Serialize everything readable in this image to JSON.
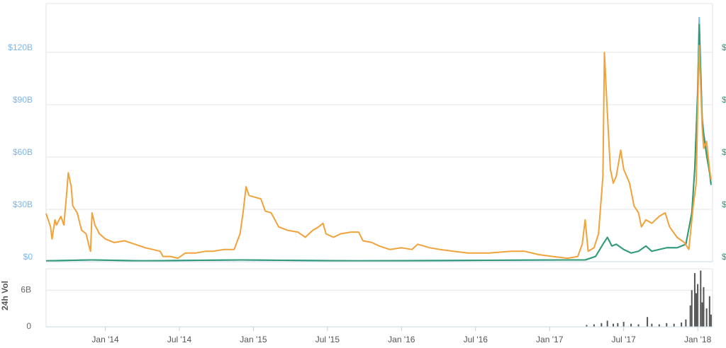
{
  "chart_data": [
    {
      "type": "line",
      "xlim": [
        2013.6,
        2018.1
      ],
      "ylim": [
        0,
        148
      ],
      "yticks": [
        {
          "value": 0,
          "label": "$0"
        },
        {
          "value": 30,
          "label": "$30B"
        },
        {
          "value": 60,
          "label": "$60B"
        },
        {
          "value": 90,
          "label": "$90B"
        },
        {
          "value": 120,
          "label": "$120B"
        }
      ],
      "y2_labels": [
        "$",
        "$",
        "$",
        "$",
        "$"
      ],
      "grid": true,
      "series": [
        {
          "color": "#7cb5ec",
          "x": [
            2013.6,
            2013.91,
            2014.25,
            2014.92,
            2015.68,
            2017.12,
            2017.24,
            2017.31,
            2017.36,
            2017.39,
            2017.42,
            2017.45,
            2017.5,
            2017.55,
            2017.6,
            2017.65,
            2017.69,
            2017.74,
            2017.79,
            2017.86,
            2017.92,
            2017.96,
            2017.98,
            2018.0,
            2018.01,
            2018.03,
            2018.04,
            2018.06,
            2018.08,
            2018.09
          ],
          "values": [
            0.5,
            1,
            0.5,
            1,
            0.5,
            1,
            1,
            3,
            10,
            14,
            9,
            10,
            7,
            5,
            6,
            9,
            6,
            7,
            8,
            8,
            10,
            28,
            53,
            100,
            140,
            83,
            74,
            62,
            52,
            45
          ]
        },
        {
          "color": "#2f9a74",
          "x": [
            2013.6,
            2013.91,
            2014.25,
            2014.92,
            2015.68,
            2017.12,
            2017.24,
            2017.31,
            2017.36,
            2017.39,
            2017.42,
            2017.45,
            2017.5,
            2017.55,
            2017.6,
            2017.65,
            2017.69,
            2017.74,
            2017.79,
            2017.86,
            2017.92,
            2017.96,
            2017.98,
            2018.0,
            2018.01,
            2018.03,
            2018.04,
            2018.06,
            2018.08,
            2018.09
          ],
          "values": [
            0.5,
            1,
            0.5,
            1,
            0.5,
            1,
            1,
            3,
            10,
            14,
            9,
            10,
            7,
            5,
            6,
            9,
            6,
            7,
            8,
            8,
            10,
            28,
            53,
            97,
            136,
            81,
            73,
            61,
            51,
            44
          ]
        },
        {
          "color": "#f0a23b",
          "x": [
            2013.6,
            2013.63,
            2013.64,
            2013.66,
            2013.67,
            2013.7,
            2013.72,
            2013.74,
            2013.75,
            2013.77,
            2013.78,
            2013.81,
            2013.84,
            2013.87,
            2013.89,
            2013.9,
            2013.91,
            2013.93,
            2013.96,
            2014.0,
            2014.06,
            2014.13,
            2014.2,
            2014.27,
            2014.32,
            2014.37,
            2014.39,
            2014.44,
            2014.49,
            2014.54,
            2014.61,
            2014.68,
            2014.73,
            2014.8,
            2014.87,
            2014.91,
            2014.93,
            2014.95,
            2014.97,
            2015.01,
            2015.05,
            2015.08,
            2015.12,
            2015.17,
            2015.23,
            2015.3,
            2015.35,
            2015.4,
            2015.44,
            2015.47,
            2015.49,
            2015.54,
            2015.59,
            2015.66,
            2015.71,
            2015.74,
            2015.8,
            2015.85,
            2015.92,
            2016.0,
            2016.07,
            2016.11,
            2016.19,
            2016.26,
            2016.35,
            2016.45,
            2016.59,
            2016.74,
            2016.83,
            2016.93,
            2017.02,
            2017.12,
            2017.19,
            2017.22,
            2017.24,
            2017.26,
            2017.3,
            2017.33,
            2017.36,
            2017.37,
            2017.39,
            2017.41,
            2017.43,
            2017.45,
            2017.48,
            2017.5,
            2017.54,
            2017.57,
            2017.6,
            2017.62,
            2017.65,
            2017.69,
            2017.74,
            2017.78,
            2017.81,
            2017.86,
            2017.91,
            2017.94,
            2017.97,
            2017.99,
            2018.0,
            2018.01,
            2018.03,
            2018.04,
            2018.06,
            2018.08,
            2018.09
          ],
          "values": [
            27.6,
            20,
            13,
            24,
            21,
            26,
            21,
            40,
            51,
            43,
            32,
            28,
            18,
            16,
            9,
            6,
            28,
            21,
            16,
            13,
            11,
            12,
            10,
            8,
            7,
            6,
            3,
            3,
            2,
            5,
            5,
            6,
            6,
            7,
            7,
            16,
            28,
            43,
            38,
            37,
            36,
            29,
            28,
            20,
            18,
            17,
            14,
            18,
            20,
            22,
            16,
            14,
            16,
            17,
            17,
            12,
            11,
            9,
            7,
            8,
            7,
            10,
            8,
            7,
            6,
            5,
            5,
            6,
            6,
            4,
            3,
            2,
            3,
            10,
            24,
            6,
            8,
            16,
            49,
            120,
            85,
            53,
            45,
            49,
            64,
            53,
            45,
            32,
            28,
            20,
            24,
            22,
            26,
            28,
            20,
            14,
            11,
            7,
            32,
            45,
            89,
            124,
            77,
            65,
            69,
            53,
            47
          ]
        }
      ]
    },
    {
      "type": "bar",
      "ylabel": "24h Vol",
      "color": "#555555",
      "xlim": [
        2013.6,
        2018.1
      ],
      "ylim": [
        0,
        9.5
      ],
      "yticks": [
        0,
        {
          "value": 6,
          "label": "6B"
        }
      ],
      "xticks": [
        {
          "value": 2014,
          "label": "Jan '14"
        },
        {
          "value": 2014.5,
          "label": "Jul '14"
        },
        {
          "value": 2015,
          "label": "Jan '15"
        },
        {
          "value": 2015.5,
          "label": "Jul '15"
        },
        {
          "value": 2016,
          "label": "Jan '16"
        },
        {
          "value": 2016.5,
          "label": "Jul '16"
        },
        {
          "value": 2017,
          "label": "Jan '17"
        },
        {
          "value": 2017.5,
          "label": "Jul '17"
        },
        {
          "value": 2018,
          "label": "Jan '18"
        }
      ],
      "x": [
        2017.25,
        2017.3,
        2017.35,
        2017.39,
        2017.43,
        2017.46,
        2017.5,
        2017.55,
        2017.6,
        2017.66,
        2017.69,
        2017.74,
        2017.79,
        2017.84,
        2017.89,
        2017.92,
        2017.95,
        2017.96,
        2017.98,
        2017.99,
        2018.0,
        2018.02,
        2018.03,
        2018.04,
        2018.06,
        2018.08,
        2018.09
      ],
      "values": [
        0.3,
        0.4,
        0.6,
        1.0,
        0.5,
        0.6,
        0.8,
        0.5,
        0.4,
        1.6,
        0.5,
        0.4,
        0.6,
        0.5,
        0.7,
        1.2,
        3.5,
        6.0,
        8.8,
        5.5,
        7.0,
        9.2,
        4.0,
        6.5,
        3.0,
        5.0,
        2.0
      ]
    }
  ]
}
